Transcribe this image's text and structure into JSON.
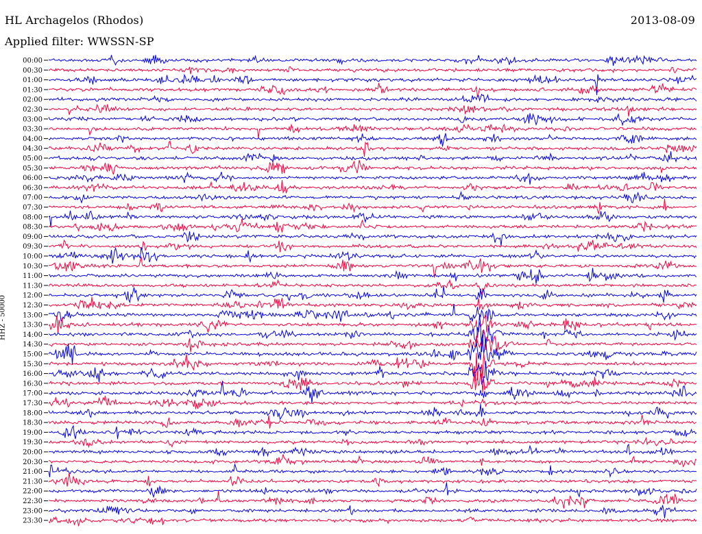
{
  "header": {
    "station": "HL Archagelos (Rhodos)",
    "date": "2013-08-09",
    "filter": "Applied filter: WWSSN-SP"
  },
  "chart_data": {
    "type": "line",
    "title": "HL Archagelos (Rhodos)",
    "ylabel": "HHZ - 50000",
    "xlabel": "",
    "row_labels": [
      "00:00",
      "00:30",
      "01:00",
      "01:30",
      "02:00",
      "02:30",
      "03:00",
      "03:30",
      "04:00",
      "04:30",
      "05:00",
      "05:30",
      "06:00",
      "06:30",
      "07:00",
      "07:30",
      "08:00",
      "08:30",
      "09:00",
      "09:30",
      "10:00",
      "10:30",
      "11:00",
      "11:30",
      "12:00",
      "12:30",
      "13:00",
      "13:30",
      "14:00",
      "14:30",
      "15:00",
      "15:30",
      "16:00",
      "16:30",
      "17:00",
      "17:30",
      "18:00",
      "18:30",
      "19:00",
      "19:30",
      "20:00",
      "20:30",
      "21:00",
      "21:30",
      "22:00",
      "22:30",
      "23:00",
      "23:30"
    ],
    "row_colors": [
      "#0000e6",
      "#f5003c"
    ],
    "grid": false,
    "legend": "none"
  }
}
